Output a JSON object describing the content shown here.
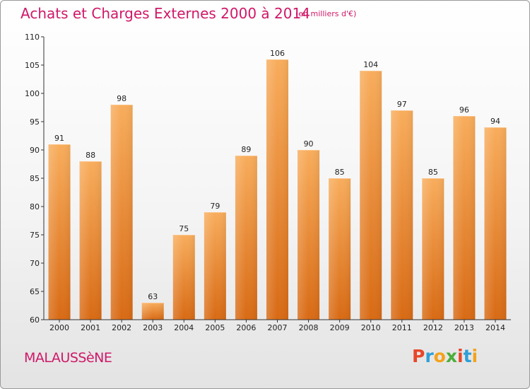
{
  "colors": {
    "accent": "#d01868",
    "bar_light": "#f7aa58",
    "bar_dark": "#ea8225",
    "bar_bottom": "#d86a14"
  },
  "header": {
    "title": "Achats et Charges Externes 2000 à 2014",
    "subtitle": "(en milliers d'€)"
  },
  "footer": {
    "commune": "MALAUSSèNE",
    "logo": [
      "P",
      "r",
      "o",
      "x",
      "i",
      "t",
      "i"
    ],
    "logo_colors": [
      "#e8462a",
      "#2f9fd7",
      "#f4a21c",
      "#4cae3c",
      "#e8462a",
      "#2f9fd7",
      "#f4a21c"
    ]
  },
  "chart_data": {
    "type": "bar",
    "title": "Achats et Charges Externes 2000 à 2014",
    "subtitle": "(en milliers d'€)",
    "categories": [
      "2000",
      "2001",
      "2002",
      "2003",
      "2004",
      "2005",
      "2006",
      "2007",
      "2008",
      "2009",
      "2010",
      "2011",
      "2012",
      "2013",
      "2014"
    ],
    "values": [
      91,
      88,
      98,
      63,
      75,
      79,
      89,
      106,
      90,
      85,
      104,
      97,
      85,
      96,
      94
    ],
    "ylim": [
      60,
      110
    ],
    "yticks": [
      60,
      65,
      70,
      75,
      80,
      85,
      90,
      95,
      100,
      105,
      110
    ],
    "grid": false,
    "data_labels": true,
    "xlabel": "",
    "ylabel": ""
  }
}
